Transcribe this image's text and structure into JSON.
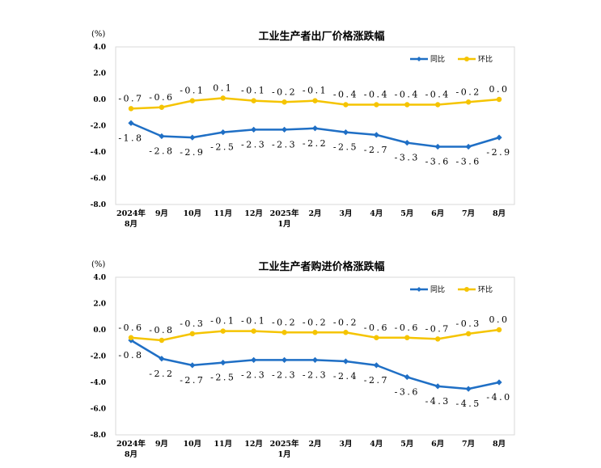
{
  "chart_data": [
    {
      "type": "line",
      "title": "工业生产者出厂价格涨跌幅",
      "unit": "(%)",
      "categories": [
        [
          "2024年",
          "8月"
        ],
        [
          "9月"
        ],
        [
          "10月"
        ],
        [
          "11月"
        ],
        [
          "12月"
        ],
        [
          "2025年",
          "1月"
        ],
        [
          "2月"
        ],
        [
          "3月"
        ],
        [
          "4月"
        ],
        [
          "5月"
        ],
        [
          "6月"
        ],
        [
          "7月"
        ],
        [
          "8月"
        ]
      ],
      "ylim": [
        -8.0,
        4.0
      ],
      "yticks": [
        "4.0",
        "2.0",
        "0.0",
        "-2.0",
        "-4.0",
        "-6.0",
        "-8.0"
      ],
      "legend_position": "top-right",
      "series": [
        {
          "name": "同比",
          "color": "#1f6fc5",
          "marker": "diamond",
          "values": [
            -1.8,
            -2.8,
            -2.9,
            -2.5,
            -2.3,
            -2.3,
            -2.2,
            -2.5,
            -2.7,
            -3.3,
            -3.6,
            -3.6,
            -2.9
          ],
          "labels": [
            "-1.8",
            "-2.8",
            "-2.9",
            "-2.5",
            "-2.3",
            "-2.3",
            "-2.2",
            "-2.5",
            "-2.7",
            "-3.3",
            "-3.6",
            "-3.6",
            "-2.9"
          ],
          "label_position": "below"
        },
        {
          "name": "环比",
          "color": "#f5c400",
          "marker": "circle",
          "values": [
            -0.7,
            -0.6,
            -0.1,
            0.1,
            -0.1,
            -0.2,
            -0.1,
            -0.4,
            -0.4,
            -0.4,
            -0.4,
            -0.2,
            0.0
          ],
          "labels": [
            "-0.7",
            "-0.6",
            "-0.1",
            "0.1",
            "-0.1",
            "-0.2",
            "-0.1",
            "-0.4",
            "-0.4",
            "-0.4",
            "-0.4",
            "-0.2",
            "0.0"
          ],
          "label_position": "above"
        }
      ]
    },
    {
      "type": "line",
      "title": "工业生产者购进价格涨跌幅",
      "unit": "(%)",
      "categories": [
        [
          "2024年",
          "8月"
        ],
        [
          "9月"
        ],
        [
          "10月"
        ],
        [
          "11月"
        ],
        [
          "12月"
        ],
        [
          "2025年",
          "1月"
        ],
        [
          "2月"
        ],
        [
          "3月"
        ],
        [
          "4月"
        ],
        [
          "5月"
        ],
        [
          "6月"
        ],
        [
          "7月"
        ],
        [
          "8月"
        ]
      ],
      "ylim": [
        -8.0,
        4.0
      ],
      "yticks": [
        "4.0",
        "2.0",
        "0.0",
        "-2.0",
        "-4.0",
        "-6.0",
        "-8.0"
      ],
      "legend_position": "top-right",
      "series": [
        {
          "name": "同比",
          "color": "#1f6fc5",
          "marker": "diamond",
          "values": [
            -0.8,
            -2.2,
            -2.7,
            -2.5,
            -2.3,
            -2.3,
            -2.3,
            -2.4,
            -2.7,
            -3.6,
            -4.3,
            -4.5,
            -4.0
          ],
          "labels": [
            "-0.8",
            "-2.2",
            "-2.7",
            "-2.5",
            "-2.3",
            "-2.3",
            "-2.3",
            "-2.4",
            "-2.7",
            "-3.6",
            "-4.3",
            "-4.5",
            "-4.0"
          ],
          "label_position": "below"
        },
        {
          "name": "环比",
          "color": "#f5c400",
          "marker": "circle",
          "values": [
            -0.6,
            -0.8,
            -0.3,
            -0.1,
            -0.1,
            -0.2,
            -0.2,
            -0.2,
            -0.6,
            -0.6,
            -0.7,
            -0.3,
            0.0
          ],
          "labels": [
            "-0.6",
            "-0.8",
            "-0.3",
            "-0.1",
            "-0.1",
            "-0.2",
            "-0.2",
            "-0.2",
            "-0.6",
            "-0.6",
            "-0.7",
            "-0.3",
            "0.0"
          ],
          "label_position": "above"
        }
      ]
    }
  ]
}
